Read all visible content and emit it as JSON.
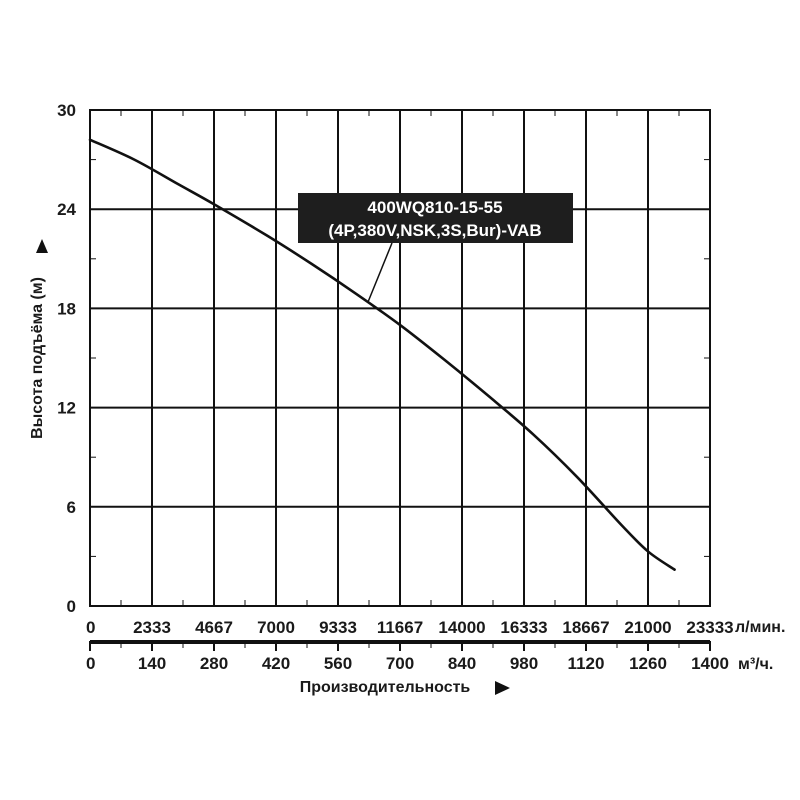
{
  "chart_data": {
    "type": "line",
    "series": [
      {
        "name": "400WQ810-15-55 (4P,380V,NSK,3S,Bur)-VAB",
        "x": [
          0,
          100,
          200,
          280,
          400,
          500,
          600,
          700,
          800,
          900,
          1000,
          1100,
          1200,
          1260,
          1320
        ],
        "y": [
          28.2,
          27.0,
          25.5,
          24.3,
          22.4,
          20.7,
          18.9,
          17.0,
          14.9,
          12.7,
          10.4,
          7.8,
          4.9,
          3.3,
          2.2
        ]
      }
    ],
    "label_lines": [
      "400WQ810-15-55",
      "(4P,380V,NSK,3S,Bur)-VAB"
    ],
    "ylabel": "Высота подъёма (м)",
    "xlabel": "Производительность",
    "ylim": [
      0,
      30
    ],
    "xlim": [
      0,
      1400
    ],
    "y_ticks": [
      "0",
      "6",
      "12",
      "18",
      "24",
      "30"
    ],
    "x_ticks_m3h": [
      "0",
      "140",
      "280",
      "420",
      "560",
      "700",
      "840",
      "980",
      "1120",
      "1260",
      "1400"
    ],
    "x_ticks_lmin": [
      "0",
      "2333",
      "4667",
      "7000",
      "9333",
      "11667",
      "14000",
      "16333",
      "18667",
      "21000",
      "23333"
    ],
    "unit_lmin": "л/мин.",
    "unit_m3h": "м³/ч.",
    "grid": true,
    "colors": {
      "line": "#111111",
      "grid": "#111111",
      "callout_bg": "#1e1e1e",
      "callout_text": "#ffffff"
    }
  }
}
